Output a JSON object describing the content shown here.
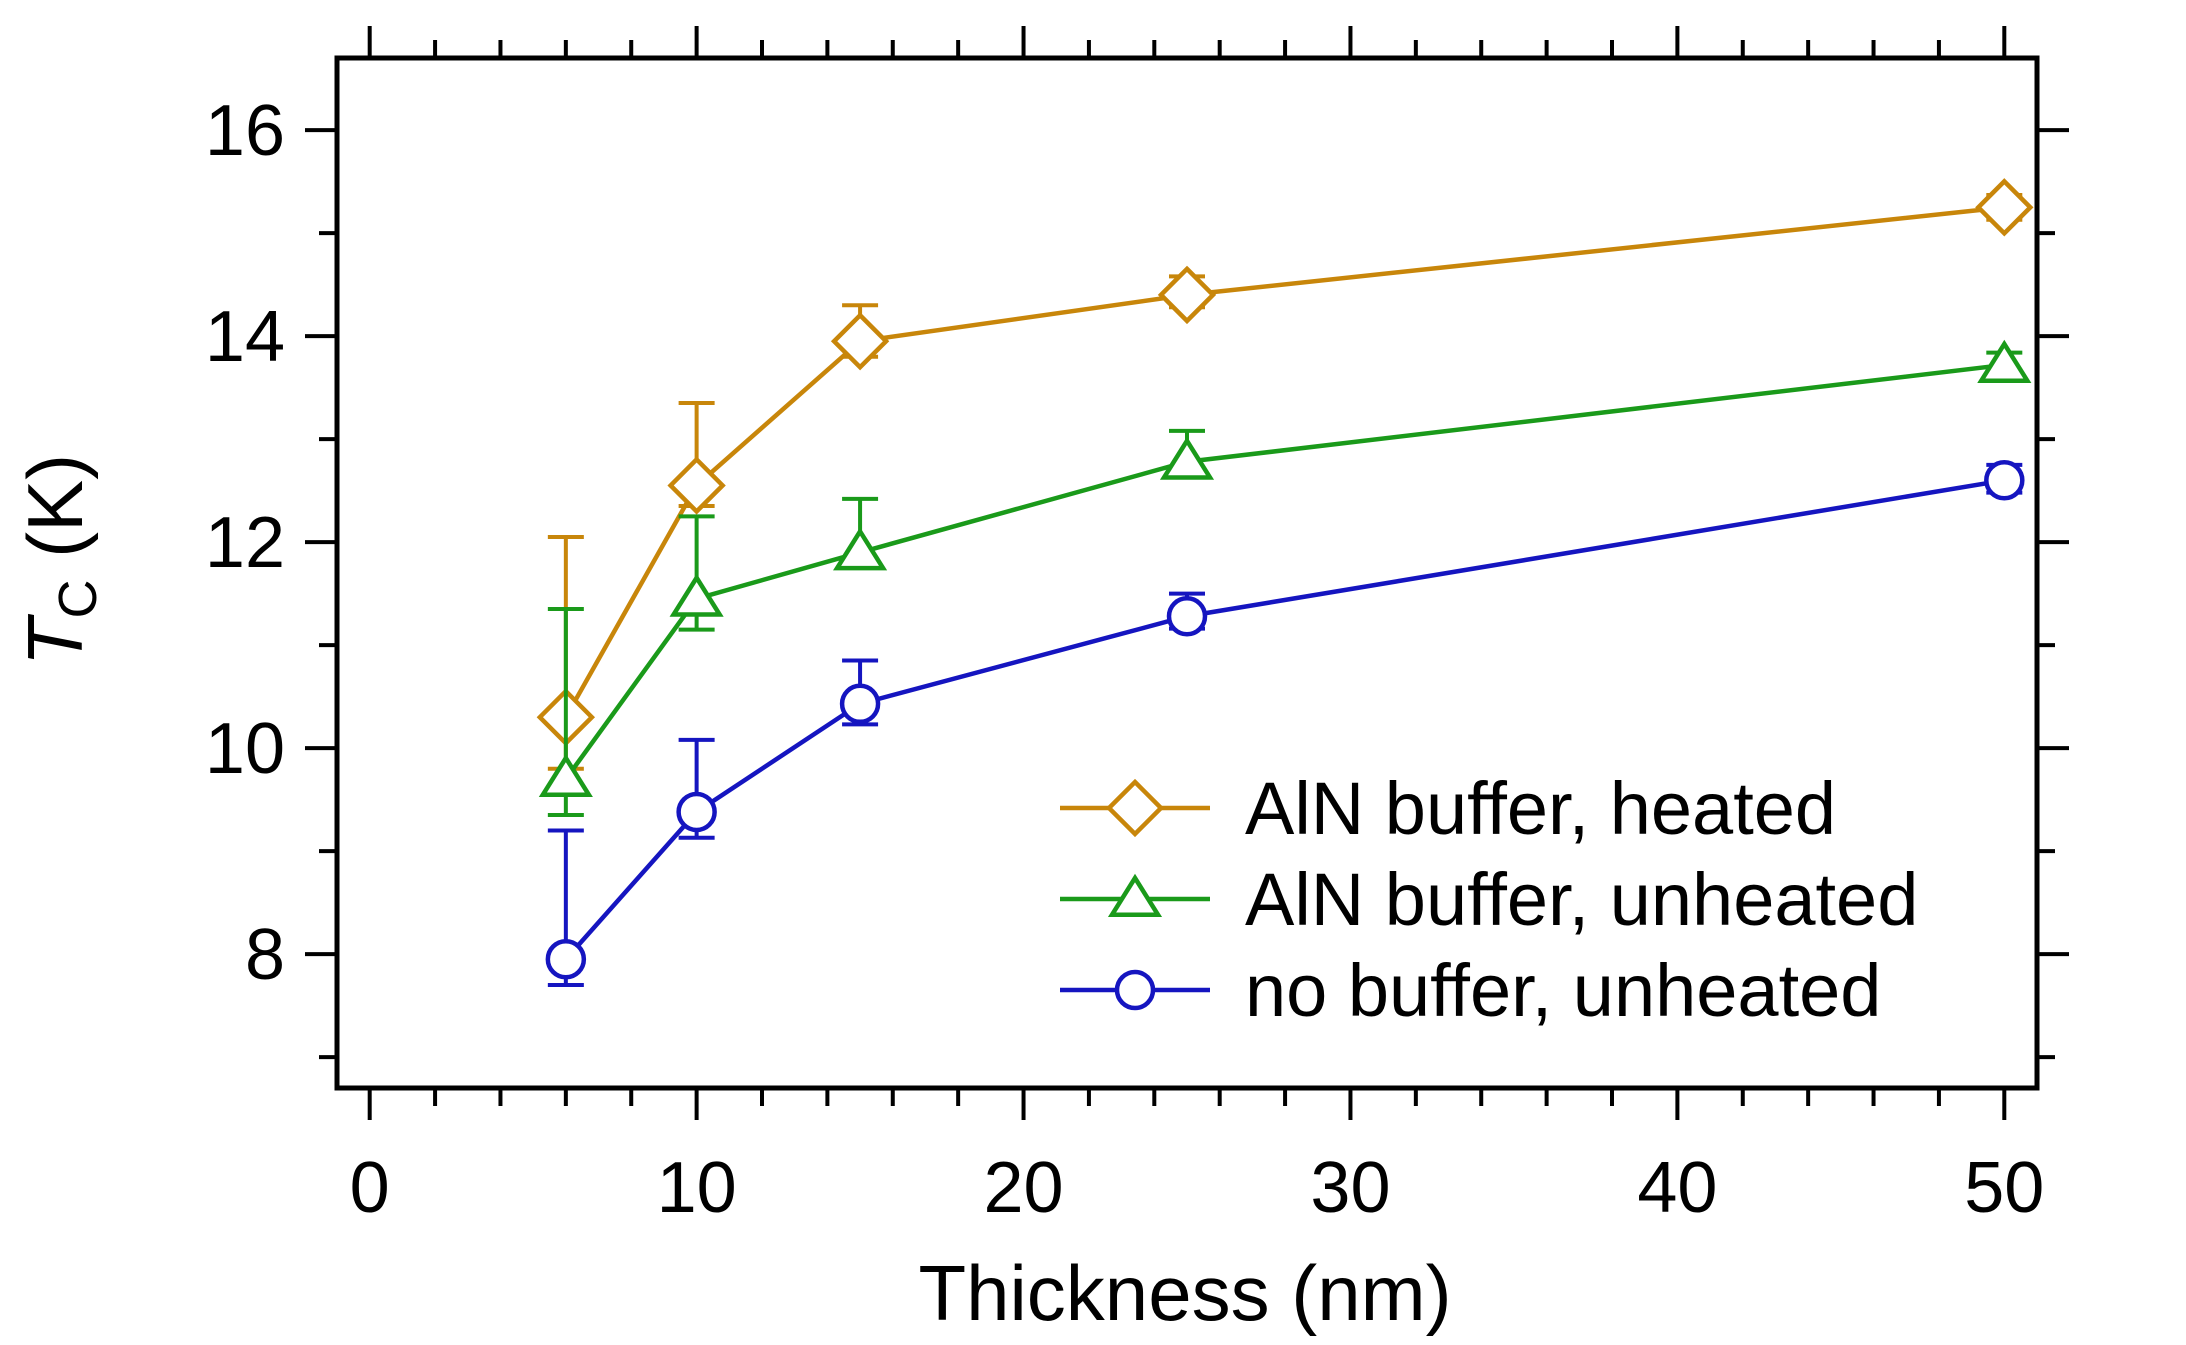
{
  "chart_data": {
    "type": "line",
    "title": "",
    "xlabel": "Thickness (nm)",
    "ylabel": {
      "symbol": "T",
      "subscript": "C",
      "unit": " (K)"
    },
    "xlim": [
      -1,
      51
    ],
    "ylim": [
      6.7,
      16.7
    ],
    "xticks": [
      0,
      10,
      20,
      30,
      40,
      50
    ],
    "xtick_labels": [
      "0",
      "10",
      "20",
      "30",
      "40",
      "50"
    ],
    "xminor_step": 2,
    "yticks": [
      8,
      10,
      12,
      14,
      16
    ],
    "ytick_labels": [
      "8",
      "10",
      "12",
      "14",
      "16"
    ],
    "yminor_step": 1,
    "grid": false,
    "legend_position": "bottom-right",
    "series": [
      {
        "name": "AlN buffer, heated",
        "color": "#C8860A",
        "marker": "diamond",
        "x": [
          6,
          10,
          15,
          25,
          50
        ],
        "y": [
          10.3,
          12.55,
          13.95,
          14.4,
          15.25
        ],
        "err_low": [
          0.5,
          0.2,
          0.15,
          0.12,
          0.12
        ],
        "err_high": [
          1.75,
          0.8,
          0.35,
          0.18,
          0.12
        ]
      },
      {
        "name": "AlN buffer, unheated",
        "color": "#1A9A1A",
        "marker": "triangle",
        "x": [
          6,
          10,
          15,
          25,
          50
        ],
        "y": [
          9.7,
          11.45,
          11.9,
          12.78,
          13.72
        ],
        "err_low": [
          0.35,
          0.3,
          0.12,
          0.1,
          0.08
        ],
        "err_high": [
          1.65,
          0.8,
          0.52,
          0.3,
          0.12
        ]
      },
      {
        "name": "no buffer, unheated",
        "color": "#1515C0",
        "marker": "circle",
        "x": [
          6,
          10,
          15,
          25,
          50
        ],
        "y": [
          7.95,
          9.38,
          10.43,
          11.28,
          12.6
        ],
        "err_low": [
          0.25,
          0.25,
          0.2,
          0.12,
          0.12
        ],
        "err_high": [
          1.25,
          0.7,
          0.42,
          0.22,
          0.15
        ]
      }
    ]
  }
}
